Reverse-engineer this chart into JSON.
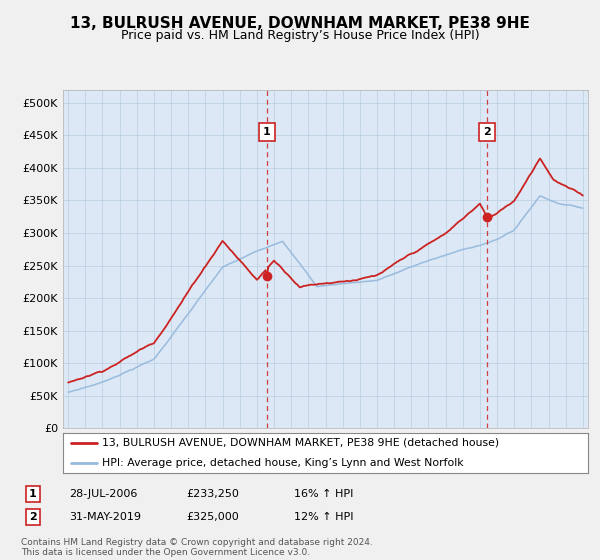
{
  "title": "13, BULRUSH AVENUE, DOWNHAM MARKET, PE38 9HE",
  "subtitle": "Price paid vs. HM Land Registry’s House Price Index (HPI)",
  "legend_line1": "13, BULRUSH AVENUE, DOWNHAM MARKET, PE38 9HE (detached house)",
  "legend_line2": "HPI: Average price, detached house, King’s Lynn and West Norfolk",
  "annotation1_date": "28-JUL-2006",
  "annotation1_price": "£233,250",
  "annotation1_hpi": "16% ↑ HPI",
  "annotation1_year": 2006.58,
  "annotation1_value": 233250,
  "annotation2_date": "31-MAY-2019",
  "annotation2_price": "£325,000",
  "annotation2_hpi": "12% ↑ HPI",
  "annotation2_year": 2019.42,
  "annotation2_value": 325000,
  "footnote1": "Contains HM Land Registry data © Crown copyright and database right 2024.",
  "footnote2": "This data is licensed under the Open Government Licence v3.0.",
  "outer_bg": "#f0f0f0",
  "plot_bg": "#dce8f5",
  "red_color": "#cc2222",
  "blue_color": "#99bbdd",
  "ylim_max": 500000,
  "xlim_start": 1994.7,
  "xlim_end": 2025.3
}
